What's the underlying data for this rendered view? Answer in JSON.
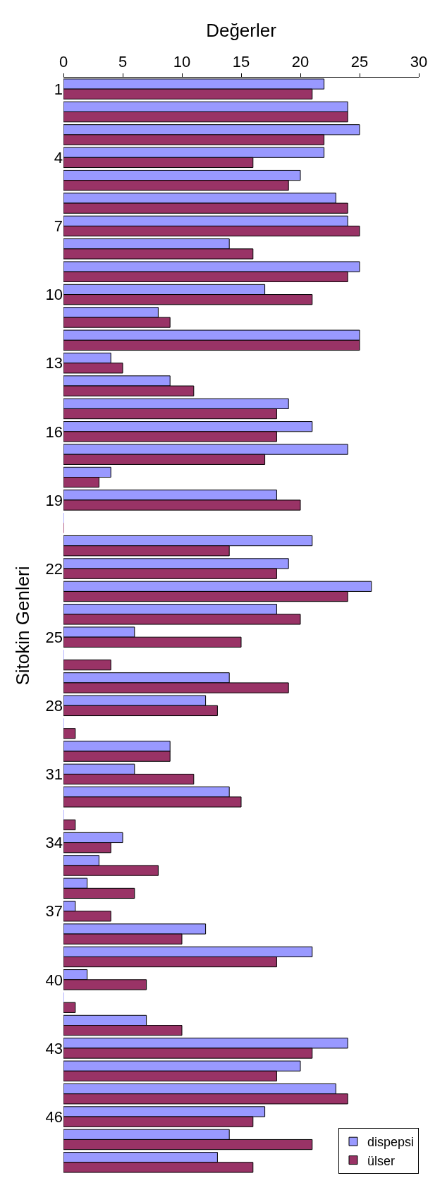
{
  "chart_data": {
    "type": "bar",
    "orientation": "horizontal",
    "xlabel": "Değerler",
    "ylabel": "Sitokin Genleri",
    "categories": [
      "1",
      null,
      null,
      "4",
      null,
      null,
      "7",
      null,
      null,
      "10",
      null,
      null,
      "13",
      null,
      null,
      "16",
      null,
      null,
      "19",
      null,
      null,
      "22",
      null,
      null,
      "25",
      null,
      null,
      "28",
      null,
      null,
      "31",
      null,
      null,
      "34",
      null,
      null,
      "37",
      null,
      null,
      "40",
      null,
      null,
      "43",
      null,
      null,
      "46",
      null,
      null
    ],
    "series": [
      {
        "name": "dispepsi",
        "color": "#9999ff",
        "values": [
          22,
          24,
          25,
          22,
          20,
          23,
          24,
          14,
          25,
          17,
          8,
          25,
          4,
          9,
          19,
          21,
          24,
          4,
          18,
          0,
          21,
          19,
          26,
          18,
          6,
          0,
          14,
          12,
          0,
          9,
          6,
          14,
          0,
          5,
          3,
          2,
          1,
          12,
          21,
          2,
          0,
          7,
          24,
          20,
          23,
          17,
          14,
          13
        ]
      },
      {
        "name": "ülser",
        "color": "#993366",
        "values": [
          21,
          24,
          22,
          16,
          19,
          24,
          25,
          16,
          24,
          21,
          9,
          25,
          5,
          11,
          18,
          18,
          17,
          3,
          20,
          0,
          14,
          18,
          24,
          20,
          15,
          4,
          19,
          13,
          1,
          9,
          11,
          15,
          1,
          4,
          8,
          6,
          4,
          10,
          18,
          7,
          1,
          10,
          21,
          18,
          24,
          16,
          21,
          16
        ]
      }
    ],
    "xlim": [
      0,
      30
    ],
    "xticks": [
      0,
      5,
      10,
      15,
      20,
      25,
      30
    ],
    "legend": "bottom right"
  }
}
